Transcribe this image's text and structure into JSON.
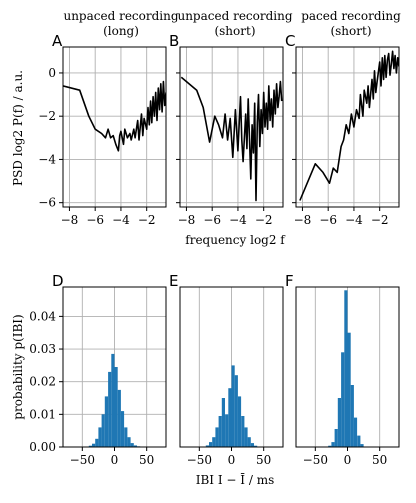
{
  "figure": {
    "top_titles": [
      [
        "unpaced recording",
        "(long)"
      ],
      [
        "unpaced recording",
        "(short)"
      ],
      [
        "paced recording",
        "(short)"
      ]
    ]
  },
  "chart_data": [
    {
      "type": "line",
      "panel": "A",
      "title": "unpaced recording (long)",
      "ylabel": "PSD log2 P(f) / a.u.",
      "xlabel": "frequency log2 f",
      "xlim": [
        -8.5,
        -0.5
      ],
      "ylim": [
        -6.2,
        1.2
      ],
      "xticks": [
        -8,
        -6,
        -4,
        -2
      ],
      "yticks": [
        0,
        -2,
        -4,
        -6
      ],
      "tick_labels_x": [
        "−8",
        "−6",
        "−4",
        "−2"
      ],
      "tick_labels_y": [
        "0",
        "−2",
        "−4",
        "−6"
      ],
      "grid": true,
      "color": "#000000",
      "series": [
        {
          "x": [
            -8.5,
            -7.2,
            -6.5,
            -6.0,
            -5.5,
            -5.2,
            -5.0,
            -4.8,
            -4.6,
            -4.4,
            -4.2,
            -4.1,
            -4.0,
            -3.8,
            -3.7,
            -3.5,
            -3.3,
            -3.2,
            -3.0,
            -2.9,
            -2.7,
            -2.6,
            -2.4,
            -2.3,
            -2.2,
            -2.0,
            -1.9,
            -1.8,
            -1.7,
            -1.6,
            -1.5,
            -1.4,
            -1.3,
            -1.2,
            -1.1,
            -1.0,
            -0.9,
            -0.8,
            -0.7,
            -0.6,
            -0.5
          ],
          "y": [
            -0.6,
            -0.8,
            -2.0,
            -2.6,
            -2.8,
            -3.0,
            -2.6,
            -3.0,
            -2.9,
            -3.3,
            -3.6,
            -2.9,
            -2.7,
            -3.3,
            -2.6,
            -3.0,
            -2.8,
            -3.1,
            -2.6,
            -3.0,
            -2.2,
            -3.1,
            -1.9,
            -2.9,
            -2.1,
            -2.6,
            -1.6,
            -2.4,
            -1.3,
            -2.3,
            -1.1,
            -2.0,
            -0.9,
            -2.2,
            -0.7,
            -1.7,
            -0.5,
            -1.8,
            -0.4,
            -1.5,
            -0.9
          ]
        }
      ]
    },
    {
      "type": "line",
      "panel": "B",
      "title": "unpaced recording (short)",
      "xlim": [
        -8.5,
        -0.5
      ],
      "ylim": [
        -6.2,
        1.2
      ],
      "xticks": [
        -8,
        -6,
        -4,
        -2
      ],
      "yticks": [
        0,
        -2,
        -4,
        -6
      ],
      "tick_labels_x": [
        "−8",
        "−6",
        "−4",
        "−2"
      ],
      "grid": true,
      "color": "#000000",
      "series": [
        {
          "x": [
            -8.4,
            -7.2,
            -6.7,
            -6.2,
            -5.8,
            -5.5,
            -5.2,
            -5.0,
            -4.8,
            -4.6,
            -4.4,
            -4.2,
            -4.0,
            -3.8,
            -3.7,
            -3.6,
            -3.4,
            -3.3,
            -3.2,
            -3.0,
            -2.9,
            -2.8,
            -2.7,
            -2.6,
            -2.5,
            -2.4,
            -2.3,
            -2.2,
            -2.1,
            -2.0,
            -1.9,
            -1.8,
            -1.7,
            -1.6,
            -1.5,
            -1.4,
            -1.3,
            -1.2,
            -1.1,
            -1.0,
            -0.9,
            -0.8,
            -0.7,
            -0.6
          ],
          "y": [
            -0.2,
            -0.8,
            -1.6,
            -3.2,
            -2.0,
            -2.4,
            -3.0,
            -1.9,
            -3.1,
            -2.1,
            -3.9,
            -1.7,
            -3.6,
            -1.1,
            -3.1,
            -4.1,
            -1.9,
            -3.5,
            -1.2,
            -4.9,
            -2.4,
            -3.7,
            -1.4,
            -5.9,
            -2.3,
            -1.0,
            -3.4,
            -1.7,
            -2.8,
            -0.9,
            -2.5,
            -1.4,
            -2.6,
            -0.6,
            -2.2,
            -1.2,
            -2.5,
            -0.8,
            -1.9,
            -0.5,
            -1.6,
            -1.1,
            -0.4,
            -1.3
          ]
        }
      ]
    },
    {
      "type": "line",
      "panel": "C",
      "title": "paced recording (short)",
      "xlim": [
        -8.5,
        -0.5
      ],
      "ylim": [
        -6.2,
        1.2
      ],
      "xticks": [
        -8,
        -6,
        -4,
        -2
      ],
      "yticks": [
        0,
        -2,
        -4,
        -6
      ],
      "tick_labels_x": [
        "−8",
        "−6",
        "−4",
        "−2"
      ],
      "grid": true,
      "color": "#000000",
      "series": [
        {
          "x": [
            -8.2,
            -7.0,
            -6.4,
            -5.9,
            -5.6,
            -5.3,
            -5.0,
            -4.8,
            -4.6,
            -4.4,
            -4.2,
            -4.0,
            -3.8,
            -3.6,
            -3.5,
            -3.3,
            -3.2,
            -3.0,
            -2.9,
            -2.8,
            -2.6,
            -2.5,
            -2.4,
            -2.3,
            -2.2,
            -2.0,
            -1.9,
            -1.8,
            -1.7,
            -1.6,
            -1.5,
            -1.4,
            -1.3,
            -1.2,
            -1.1,
            -1.0,
            -0.9,
            -0.8,
            -0.7,
            -0.6,
            -0.5
          ],
          "y": [
            -5.9,
            -4.2,
            -4.6,
            -5.1,
            -4.4,
            -4.6,
            -3.4,
            -3.1,
            -2.4,
            -2.8,
            -1.9,
            -2.5,
            -1.7,
            -2.1,
            -1.0,
            -2.0,
            -0.8,
            -1.4,
            -0.6,
            -1.6,
            -0.3,
            -1.2,
            0.1,
            -0.9,
            -0.4,
            0.5,
            -0.6,
            0.7,
            -0.3,
            0.8,
            -0.2,
            0.6,
            0.9,
            -0.1,
            0.4,
            1.0,
            0.2,
            0.8,
            0.0,
            0.7,
            0.3
          ]
        }
      ]
    },
    {
      "type": "bar",
      "panel": "D",
      "ylabel": "probability p(IBI)",
      "xlabel": "IBI I − Ī / ms",
      "xlim": [
        -80,
        80
      ],
      "ylim": [
        0,
        0.049
      ],
      "xticks": [
        -50,
        0,
        50
      ],
      "yticks": [
        0.0,
        0.01,
        0.02,
        0.03,
        0.04
      ],
      "tick_labels_x": [
        "−50",
        "0",
        "50"
      ],
      "tick_labels_y": [
        "0.00",
        "0.01",
        "0.02",
        "0.03",
        "0.04"
      ],
      "grid": true,
      "color": "#1f77b4",
      "bin_width": 5,
      "bin_start": -40,
      "values": [
        0.0004,
        0.001,
        0.0025,
        0.006,
        0.01,
        0.0155,
        0.023,
        0.0285,
        0.0245,
        0.0175,
        0.011,
        0.006,
        0.003,
        0.0012,
        0.0005,
        0.0002
      ]
    },
    {
      "type": "bar",
      "panel": "E",
      "xlim": [
        -80,
        80
      ],
      "ylim": [
        0,
        0.049
      ],
      "xticks": [
        -50,
        0,
        50
      ],
      "tick_labels_x": [
        "−50",
        "0",
        "50"
      ],
      "grid": true,
      "color": "#1f77b4",
      "bin_width": 5,
      "bin_start": -40,
      "values": [
        0.0005,
        0.0015,
        0.003,
        0.006,
        0.0095,
        0.015,
        0.01,
        0.018,
        0.025,
        0.022,
        0.0155,
        0.0095,
        0.006,
        0.003,
        0.0012,
        0.0004
      ]
    },
    {
      "type": "bar",
      "panel": "F",
      "xlim": [
        -80,
        80
      ],
      "ylim": [
        0,
        0.049
      ],
      "xticks": [
        -50,
        0,
        50
      ],
      "tick_labels_x": [
        "−50",
        "0",
        "50"
      ],
      "grid": true,
      "color": "#1f77b4",
      "bin_width": 5,
      "bin_start": -30,
      "values": [
        0.0004,
        0.0015,
        0.0055,
        0.015,
        0.029,
        0.048,
        0.035,
        0.019,
        0.009,
        0.0035,
        0.0009
      ]
    }
  ]
}
